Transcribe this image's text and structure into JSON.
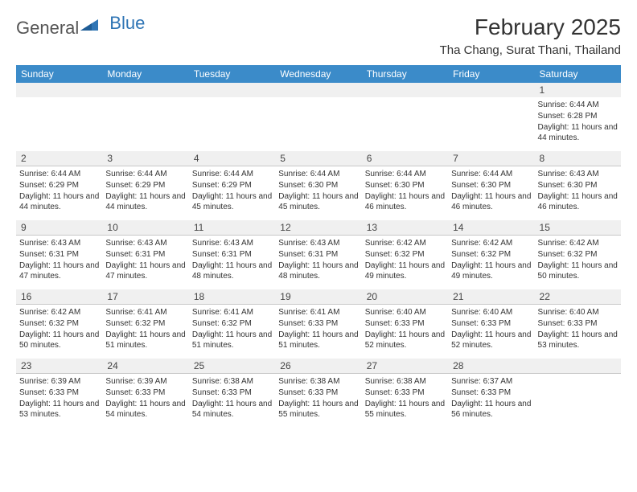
{
  "brand": {
    "part1": "General",
    "part2": "Blue"
  },
  "title": "February 2025",
  "location": "Tha Chang, Surat Thani, Thailand",
  "colors": {
    "header_bg": "#3b8bc9",
    "header_text": "#ffffff",
    "daynum_bg": "#f0f0f0",
    "border": "#c8c8c8",
    "body_text": "#333333",
    "logo_gray": "#555555",
    "logo_blue": "#2f75b5"
  },
  "weekdays": [
    "Sunday",
    "Monday",
    "Tuesday",
    "Wednesday",
    "Thursday",
    "Friday",
    "Saturday"
  ],
  "weeks": [
    [
      null,
      null,
      null,
      null,
      null,
      null,
      {
        "d": "1",
        "sr": "Sunrise: 6:44 AM",
        "ss": "Sunset: 6:28 PM",
        "dl": "Daylight: 11 hours and 44 minutes."
      }
    ],
    [
      {
        "d": "2",
        "sr": "Sunrise: 6:44 AM",
        "ss": "Sunset: 6:29 PM",
        "dl": "Daylight: 11 hours and 44 minutes."
      },
      {
        "d": "3",
        "sr": "Sunrise: 6:44 AM",
        "ss": "Sunset: 6:29 PM",
        "dl": "Daylight: 11 hours and 44 minutes."
      },
      {
        "d": "4",
        "sr": "Sunrise: 6:44 AM",
        "ss": "Sunset: 6:29 PM",
        "dl": "Daylight: 11 hours and 45 minutes."
      },
      {
        "d": "5",
        "sr": "Sunrise: 6:44 AM",
        "ss": "Sunset: 6:30 PM",
        "dl": "Daylight: 11 hours and 45 minutes."
      },
      {
        "d": "6",
        "sr": "Sunrise: 6:44 AM",
        "ss": "Sunset: 6:30 PM",
        "dl": "Daylight: 11 hours and 46 minutes."
      },
      {
        "d": "7",
        "sr": "Sunrise: 6:44 AM",
        "ss": "Sunset: 6:30 PM",
        "dl": "Daylight: 11 hours and 46 minutes."
      },
      {
        "d": "8",
        "sr": "Sunrise: 6:43 AM",
        "ss": "Sunset: 6:30 PM",
        "dl": "Daylight: 11 hours and 46 minutes."
      }
    ],
    [
      {
        "d": "9",
        "sr": "Sunrise: 6:43 AM",
        "ss": "Sunset: 6:31 PM",
        "dl": "Daylight: 11 hours and 47 minutes."
      },
      {
        "d": "10",
        "sr": "Sunrise: 6:43 AM",
        "ss": "Sunset: 6:31 PM",
        "dl": "Daylight: 11 hours and 47 minutes."
      },
      {
        "d": "11",
        "sr": "Sunrise: 6:43 AM",
        "ss": "Sunset: 6:31 PM",
        "dl": "Daylight: 11 hours and 48 minutes."
      },
      {
        "d": "12",
        "sr": "Sunrise: 6:43 AM",
        "ss": "Sunset: 6:31 PM",
        "dl": "Daylight: 11 hours and 48 minutes."
      },
      {
        "d": "13",
        "sr": "Sunrise: 6:42 AM",
        "ss": "Sunset: 6:32 PM",
        "dl": "Daylight: 11 hours and 49 minutes."
      },
      {
        "d": "14",
        "sr": "Sunrise: 6:42 AM",
        "ss": "Sunset: 6:32 PM",
        "dl": "Daylight: 11 hours and 49 minutes."
      },
      {
        "d": "15",
        "sr": "Sunrise: 6:42 AM",
        "ss": "Sunset: 6:32 PM",
        "dl": "Daylight: 11 hours and 50 minutes."
      }
    ],
    [
      {
        "d": "16",
        "sr": "Sunrise: 6:42 AM",
        "ss": "Sunset: 6:32 PM",
        "dl": "Daylight: 11 hours and 50 minutes."
      },
      {
        "d": "17",
        "sr": "Sunrise: 6:41 AM",
        "ss": "Sunset: 6:32 PM",
        "dl": "Daylight: 11 hours and 51 minutes."
      },
      {
        "d": "18",
        "sr": "Sunrise: 6:41 AM",
        "ss": "Sunset: 6:32 PM",
        "dl": "Daylight: 11 hours and 51 minutes."
      },
      {
        "d": "19",
        "sr": "Sunrise: 6:41 AM",
        "ss": "Sunset: 6:33 PM",
        "dl": "Daylight: 11 hours and 51 minutes."
      },
      {
        "d": "20",
        "sr": "Sunrise: 6:40 AM",
        "ss": "Sunset: 6:33 PM",
        "dl": "Daylight: 11 hours and 52 minutes."
      },
      {
        "d": "21",
        "sr": "Sunrise: 6:40 AM",
        "ss": "Sunset: 6:33 PM",
        "dl": "Daylight: 11 hours and 52 minutes."
      },
      {
        "d": "22",
        "sr": "Sunrise: 6:40 AM",
        "ss": "Sunset: 6:33 PM",
        "dl": "Daylight: 11 hours and 53 minutes."
      }
    ],
    [
      {
        "d": "23",
        "sr": "Sunrise: 6:39 AM",
        "ss": "Sunset: 6:33 PM",
        "dl": "Daylight: 11 hours and 53 minutes."
      },
      {
        "d": "24",
        "sr": "Sunrise: 6:39 AM",
        "ss": "Sunset: 6:33 PM",
        "dl": "Daylight: 11 hours and 54 minutes."
      },
      {
        "d": "25",
        "sr": "Sunrise: 6:38 AM",
        "ss": "Sunset: 6:33 PM",
        "dl": "Daylight: 11 hours and 54 minutes."
      },
      {
        "d": "26",
        "sr": "Sunrise: 6:38 AM",
        "ss": "Sunset: 6:33 PM",
        "dl": "Daylight: 11 hours and 55 minutes."
      },
      {
        "d": "27",
        "sr": "Sunrise: 6:38 AM",
        "ss": "Sunset: 6:33 PM",
        "dl": "Daylight: 11 hours and 55 minutes."
      },
      {
        "d": "28",
        "sr": "Sunrise: 6:37 AM",
        "ss": "Sunset: 6:33 PM",
        "dl": "Daylight: 11 hours and 56 minutes."
      },
      null
    ]
  ]
}
